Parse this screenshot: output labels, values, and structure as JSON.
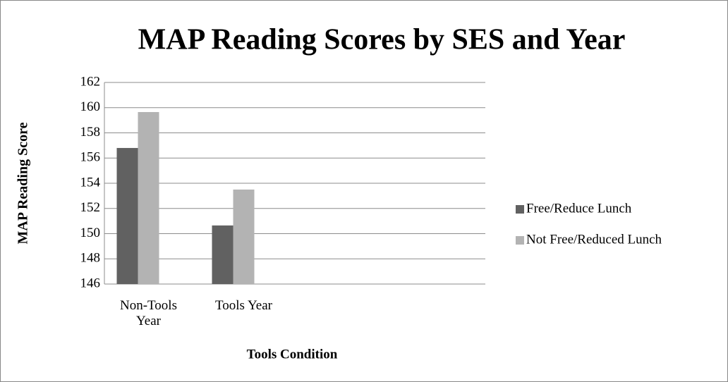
{
  "chart_data": {
    "type": "bar",
    "title": "MAP Reading Scores by SES and Year",
    "y_label": "MAP Reading Score",
    "x_label": "Tools  Condition",
    "categories": [
      "Non-Tools Year",
      "Tools Year",
      null,
      null
    ],
    "series": [
      {
        "name": "Free/Reduce Lunch",
        "color": "#616161",
        "values": [
          156.8,
          150.65,
          null,
          null
        ]
      },
      {
        "name": "Not Free/Reduced Lunch",
        "color": "#b3b3b3",
        "values": [
          159.65,
          153.5,
          null,
          null
        ]
      }
    ],
    "ylim": [
      146,
      162
    ],
    "yticks": [
      146,
      148,
      150,
      152,
      154,
      156,
      158,
      160,
      162
    ],
    "grid": true,
    "legend": "right"
  }
}
